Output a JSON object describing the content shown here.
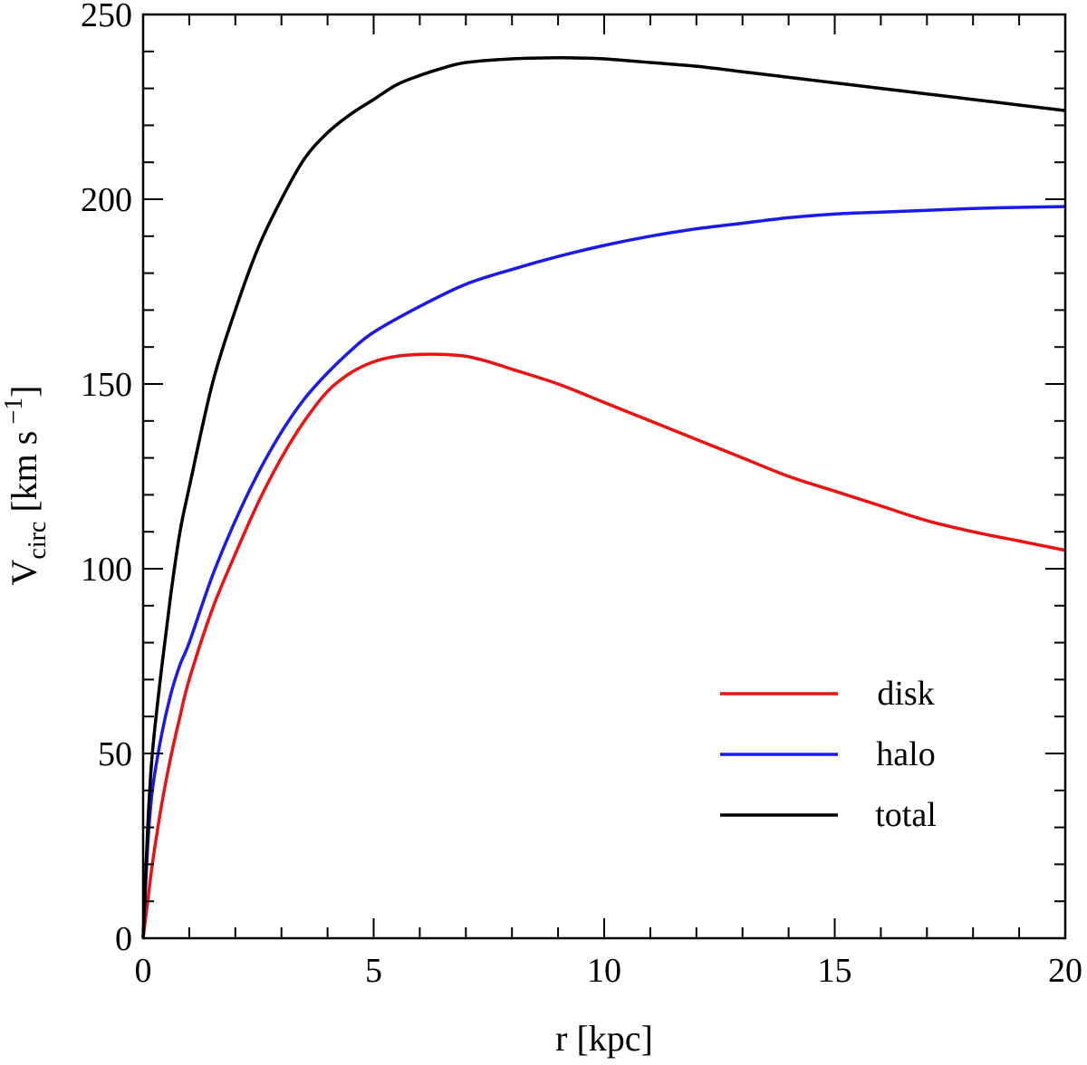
{
  "chart_data": {
    "type": "line",
    "xlabel": "r [kpc]",
    "ylabel": {
      "main": "V",
      "sub": "circ",
      "units_prefix": " [km s",
      "sup": " −1",
      "units_suffix": "]"
    },
    "xlim": [
      0,
      20
    ],
    "ylim": [
      0,
      250
    ],
    "x_ticks": [
      0,
      5,
      10,
      15,
      20
    ],
    "y_ticks": [
      0,
      50,
      100,
      150,
      200,
      250
    ],
    "x_minor_step": 1,
    "y_minor_step": 10,
    "grid": false,
    "legend_position": "bottom-right",
    "series": [
      {
        "name": "disk",
        "color": "#ee1111",
        "x": [
          0,
          0.1,
          0.2,
          0.4,
          0.6,
          0.8,
          1.0,
          1.5,
          2.0,
          2.5,
          3.0,
          3.5,
          4.0,
          4.5,
          5.0,
          5.5,
          6.0,
          6.5,
          7.0,
          7.5,
          8.0,
          9.0,
          10.0,
          11.0,
          12.0,
          13.0,
          14.0,
          15.0,
          16.0,
          17.0,
          18.0,
          19.0,
          20.0
        ],
        "y": [
          0,
          10,
          20,
          36,
          49,
          60,
          70,
          89,
          104,
          118,
          130,
          140,
          148,
          153,
          156,
          157.5,
          158,
          158,
          157.5,
          156,
          154,
          150,
          145,
          140,
          135,
          130,
          125,
          121,
          117,
          113,
          110,
          107.5,
          105
        ]
      },
      {
        "name": "halo",
        "color": "#1a1aee",
        "x": [
          0,
          0.1,
          0.2,
          0.4,
          0.6,
          0.8,
          1.0,
          1.5,
          2.0,
          2.5,
          3.0,
          3.5,
          4.0,
          4.5,
          5.0,
          6.0,
          7.0,
          8.0,
          9.0,
          10.0,
          11.0,
          12.0,
          13.0,
          14.0,
          15.0,
          16.0,
          17.0,
          18.0,
          19.0,
          20.0
        ],
        "y": [
          0,
          25,
          40,
          55,
          66,
          74,
          80,
          98,
          113,
          126,
          137,
          146,
          153,
          159,
          164,
          171,
          177,
          181,
          184.5,
          187.5,
          190,
          192,
          193.5,
          195,
          196,
          196.5,
          197,
          197.5,
          197.8,
          198
        ]
      },
      {
        "name": "total",
        "color": "#000000",
        "x": [
          0,
          0.1,
          0.2,
          0.4,
          0.6,
          0.8,
          1.0,
          1.5,
          2.0,
          2.5,
          3.0,
          3.5,
          4.0,
          4.5,
          5.0,
          5.5,
          6.0,
          6.5,
          7.0,
          8.0,
          9.0,
          9.5,
          10.0,
          11.0,
          12.0,
          13.0,
          14.0,
          15.0,
          16.0,
          17.0,
          18.0,
          19.0,
          20.0
        ],
        "y": [
          0,
          30,
          50,
          73,
          93,
          110,
          122,
          150,
          170,
          187,
          200,
          211,
          218,
          223,
          227,
          231,
          233.5,
          235.5,
          237,
          238,
          238.3,
          238.2,
          238,
          237,
          236,
          234.5,
          233,
          231.5,
          230,
          228.5,
          227,
          225.5,
          224
        ]
      }
    ]
  }
}
